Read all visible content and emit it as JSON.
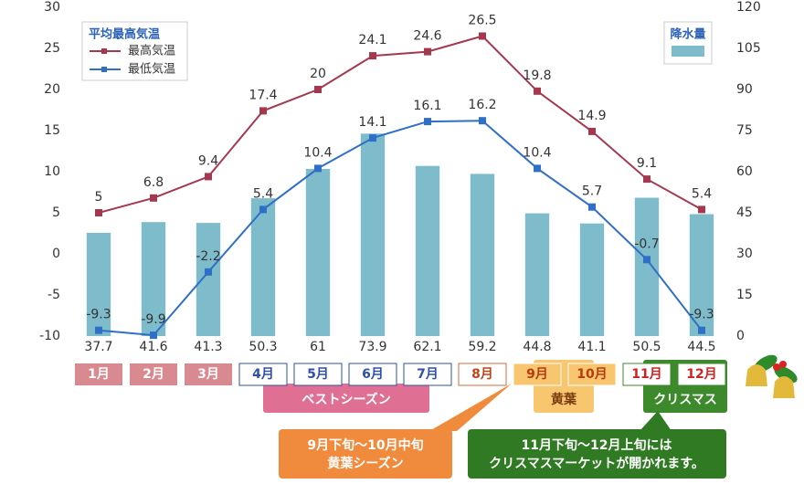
{
  "chart_data": {
    "type": "combo",
    "categories": [
      "1月",
      "2月",
      "3月",
      "4月",
      "5月",
      "6月",
      "7月",
      "8月",
      "9月",
      "10月",
      "11月",
      "12月"
    ],
    "series": [
      {
        "name": "降水量",
        "type": "bar",
        "axis": "y2",
        "color": "#7fbccb",
        "values": [
          37.7,
          41.6,
          41.3,
          50.3,
          61,
          73.9,
          62.1,
          59.2,
          44.8,
          41.1,
          50.5,
          44.5
        ]
      },
      {
        "name": "最高気温",
        "type": "line",
        "color": "#a3384f",
        "values": [
          5,
          6.8,
          9.4,
          17.4,
          20,
          24.1,
          24.6,
          26.5,
          19.8,
          14.9,
          9.1,
          5.4
        ]
      },
      {
        "name": "最低気温",
        "type": "line",
        "color": "#2f6fc6",
        "values": [
          -9.3,
          -9.9,
          -2.2,
          5.4,
          10.4,
          14.1,
          16.1,
          16.2,
          10.4,
          5.7,
          -0.7,
          -9.3
        ]
      }
    ],
    "legend_title": "平均最高気温",
    "ylim": [
      -10,
      30
    ],
    "yticks": [
      -10,
      -5,
      0,
      5,
      10,
      15,
      20,
      25,
      30
    ],
    "y2lim": [
      0,
      120
    ],
    "y2ticks": [
      0,
      15,
      30,
      45,
      60,
      75,
      90,
      105,
      120
    ],
    "seasons": [
      "ベストシーズン",
      "黄葉",
      "クリスマス"
    ],
    "callouts": [
      [
        "9月下旬～10月中旬",
        "黄葉シーズン"
      ],
      [
        "11月下旬～12月上旬には",
        "クリスマスマーケットが開かれます。"
      ]
    ]
  }
}
